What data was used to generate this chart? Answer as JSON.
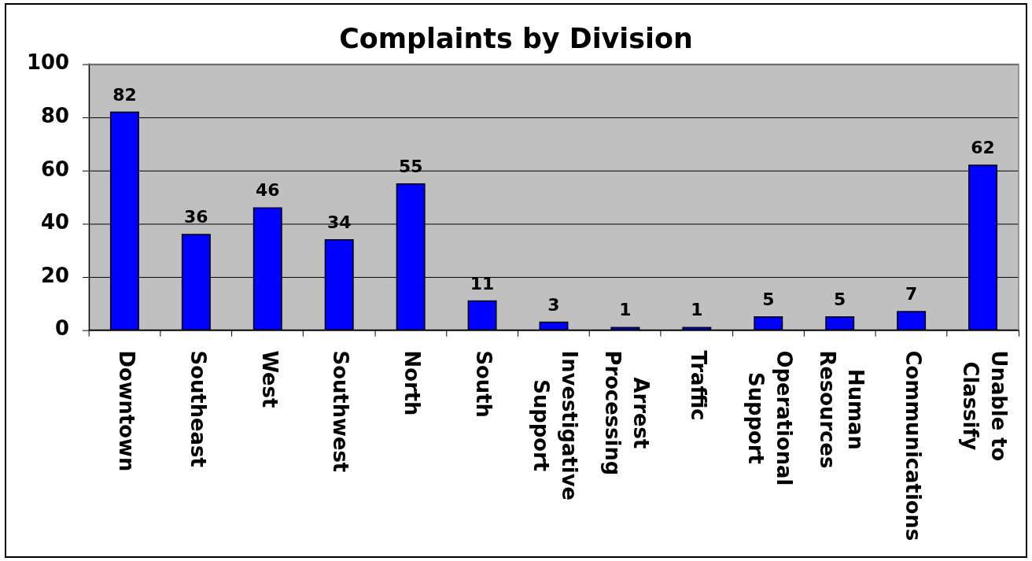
{
  "chart_data": {
    "type": "bar",
    "title": "Complaints by Division",
    "categories": [
      "Downtown",
      "Southeast",
      "West",
      "Southwest",
      "North",
      "South",
      "Investigative Support",
      "Arrest Processing",
      "Traffic",
      "Operational Support",
      "Human Resources",
      "Communications",
      "Unable to Classify"
    ],
    "values": [
      82,
      36,
      46,
      34,
      55,
      11,
      3,
      1,
      1,
      5,
      5,
      7,
      62
    ],
    "color": "#0000ff",
    "ylim": [
      0,
      100
    ],
    "yticks": [
      0,
      20,
      40,
      60,
      80,
      100
    ],
    "grid": "y",
    "data_labels": true
  }
}
